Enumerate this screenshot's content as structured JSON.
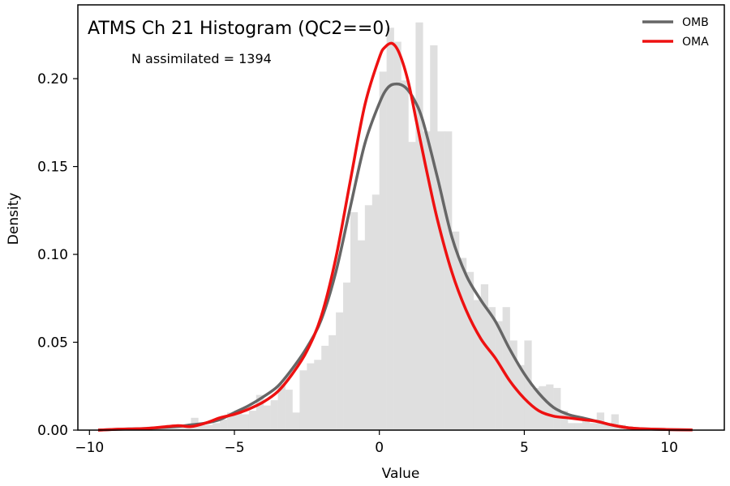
{
  "chart_data": {
    "type": "histogram+density",
    "title": "ATMS Ch 21 Histogram (QC2==0)",
    "annotation": "N assimilated = 1394",
    "xlabel": "Value",
    "ylabel": "Density",
    "xlim": [
      -10.4,
      11.9
    ],
    "ylim": [
      0,
      0.242
    ],
    "xticks": [
      -10,
      -5,
      0,
      5,
      10
    ],
    "yticks": [
      0.0,
      0.05,
      0.1,
      0.15,
      0.2
    ],
    "ytick_labels": [
      "0.00",
      "0.05",
      "0.10",
      "0.15",
      "0.20"
    ],
    "legend": {
      "position": "top-right",
      "entries": [
        {
          "label": "OMB",
          "color": "#666666"
        },
        {
          "label": "OMA",
          "color": "#ee1111"
        }
      ]
    },
    "histogram": {
      "color": "#dfdfdf",
      "bin_width": 0.25,
      "bins": [
        {
          "x0": -8.0,
          "v": 0.002
        },
        {
          "x0": -7.75,
          "v": 0.002
        },
        {
          "x0": -7.5,
          "v": 0.001
        },
        {
          "x0": -7.25,
          "v": 0.002
        },
        {
          "x0": -7.0,
          "v": 0.003
        },
        {
          "x0": -6.75,
          "v": 0.003
        },
        {
          "x0": -6.5,
          "v": 0.007
        },
        {
          "x0": -6.25,
          "v": 0.003
        },
        {
          "x0": -6.0,
          "v": 0.003
        },
        {
          "x0": -5.75,
          "v": 0.004
        },
        {
          "x0": -5.5,
          "v": 0.006
        },
        {
          "x0": -5.25,
          "v": 0.01
        },
        {
          "x0": -5.0,
          "v": 0.01
        },
        {
          "x0": -4.75,
          "v": 0.009
        },
        {
          "x0": -4.5,
          "v": 0.011
        },
        {
          "x0": -4.25,
          "v": 0.02
        },
        {
          "x0": -4.0,
          "v": 0.014
        },
        {
          "x0": -3.75,
          "v": 0.017
        },
        {
          "x0": -3.5,
          "v": 0.026
        },
        {
          "x0": -3.25,
          "v": 0.023
        },
        {
          "x0": -3.0,
          "v": 0.01
        },
        {
          "x0": -2.75,
          "v": 0.034
        },
        {
          "x0": -2.5,
          "v": 0.038
        },
        {
          "x0": -2.25,
          "v": 0.04
        },
        {
          "x0": -2.0,
          "v": 0.048
        },
        {
          "x0": -1.75,
          "v": 0.054
        },
        {
          "x0": -1.5,
          "v": 0.067
        },
        {
          "x0": -1.25,
          "v": 0.084
        },
        {
          "x0": -1.0,
          "v": 0.124
        },
        {
          "x0": -0.75,
          "v": 0.108
        },
        {
          "x0": -0.5,
          "v": 0.128
        },
        {
          "x0": -0.25,
          "v": 0.134
        },
        {
          "x0": 0.0,
          "v": 0.204
        },
        {
          "x0": 0.25,
          "v": 0.229
        },
        {
          "x0": 0.5,
          "v": 0.221
        },
        {
          "x0": 0.75,
          "v": 0.199
        },
        {
          "x0": 1.0,
          "v": 0.164
        },
        {
          "x0": 1.25,
          "v": 0.232
        },
        {
          "x0": 1.5,
          "v": 0.17
        },
        {
          "x0": 1.75,
          "v": 0.219
        },
        {
          "x0": 2.0,
          "v": 0.17
        },
        {
          "x0": 2.25,
          "v": 0.17
        },
        {
          "x0": 2.5,
          "v": 0.113
        },
        {
          "x0": 2.75,
          "v": 0.098
        },
        {
          "x0": 3.0,
          "v": 0.09
        },
        {
          "x0": 3.25,
          "v": 0.074
        },
        {
          "x0": 3.5,
          "v": 0.083
        },
        {
          "x0": 3.75,
          "v": 0.07
        },
        {
          "x0": 4.0,
          "v": 0.062
        },
        {
          "x0": 4.25,
          "v": 0.07
        },
        {
          "x0": 4.5,
          "v": 0.051
        },
        {
          "x0": 4.75,
          "v": 0.037
        },
        {
          "x0": 5.0,
          "v": 0.051
        },
        {
          "x0": 5.25,
          "v": 0.024
        },
        {
          "x0": 5.5,
          "v": 0.025
        },
        {
          "x0": 5.75,
          "v": 0.026
        },
        {
          "x0": 6.0,
          "v": 0.024
        },
        {
          "x0": 6.25,
          "v": 0.011
        },
        {
          "x0": 6.5,
          "v": 0.004
        },
        {
          "x0": 6.75,
          "v": 0.004
        },
        {
          "x0": 7.0,
          "v": 0.006
        },
        {
          "x0": 7.25,
          "v": 0.004
        },
        {
          "x0": 7.5,
          "v": 0.01
        },
        {
          "x0": 7.75,
          "v": 0.004
        },
        {
          "x0": 8.0,
          "v": 0.009
        },
        {
          "x0": 8.25,
          "v": 0.003
        },
        {
          "x0": 8.5,
          "v": 0.002
        },
        {
          "x0": 8.75,
          "v": 0.001
        }
      ]
    },
    "series": [
      {
        "name": "OMB",
        "color": "#666666",
        "x": [
          -9.7,
          -9.0,
          -8.0,
          -7.0,
          -6.5,
          -6.0,
          -5.5,
          -5.0,
          -4.5,
          -4.0,
          -3.5,
          -3.0,
          -2.5,
          -2.0,
          -1.5,
          -1.0,
          -0.5,
          0.0,
          0.3,
          0.6,
          0.9,
          1.2,
          1.5,
          2.0,
          2.5,
          3.0,
          3.5,
          4.0,
          4.5,
          5.0,
          5.5,
          6.0,
          6.5,
          7.0,
          7.5,
          8.0,
          8.5,
          9.0,
          10.0,
          10.8
        ],
        "y": [
          0.0,
          0.0005,
          0.001,
          0.002,
          0.003,
          0.004,
          0.006,
          0.01,
          0.014,
          0.019,
          0.025,
          0.035,
          0.047,
          0.063,
          0.09,
          0.127,
          0.163,
          0.186,
          0.195,
          0.197,
          0.195,
          0.188,
          0.176,
          0.144,
          0.11,
          0.088,
          0.074,
          0.062,
          0.046,
          0.032,
          0.021,
          0.013,
          0.009,
          0.007,
          0.005,
          0.003,
          0.0015,
          0.0008,
          0.0003,
          0.0001
        ]
      },
      {
        "name": "OMA",
        "color": "#ee1111",
        "x": [
          -9.7,
          -9.0,
          -8.0,
          -7.0,
          -6.5,
          -6.0,
          -5.5,
          -5.0,
          -4.5,
          -4.0,
          -3.5,
          -3.0,
          -2.5,
          -2.0,
          -1.5,
          -1.0,
          -0.5,
          0.0,
          0.2,
          0.45,
          0.7,
          1.0,
          1.3,
          1.6,
          2.0,
          2.5,
          3.0,
          3.5,
          4.0,
          4.5,
          5.0,
          5.5,
          6.0,
          6.5,
          7.0,
          7.5,
          8.0,
          8.5,
          9.0,
          10.0,
          10.8
        ],
        "y": [
          0.0,
          0.0005,
          0.001,
          0.0025,
          0.002,
          0.004,
          0.007,
          0.009,
          0.012,
          0.016,
          0.022,
          0.032,
          0.045,
          0.065,
          0.098,
          0.142,
          0.185,
          0.212,
          0.218,
          0.22,
          0.214,
          0.198,
          0.174,
          0.15,
          0.12,
          0.09,
          0.068,
          0.052,
          0.041,
          0.028,
          0.018,
          0.011,
          0.008,
          0.007,
          0.006,
          0.005,
          0.003,
          0.0015,
          0.0008,
          0.0003,
          0.0001
        ]
      }
    ]
  }
}
